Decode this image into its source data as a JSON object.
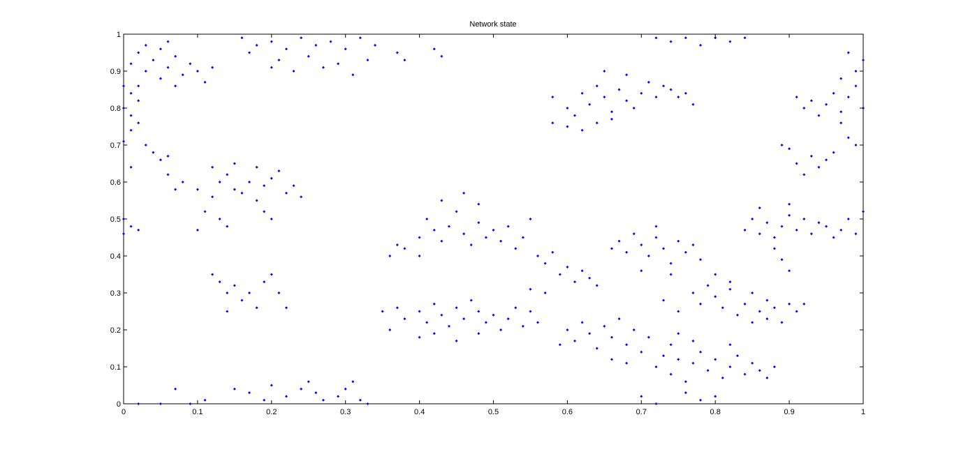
{
  "chart_data": {
    "type": "scatter",
    "title": "Network state",
    "xlabel": "",
    "ylabel": "",
    "xlim": [
      0,
      1
    ],
    "ylim": [
      0,
      1
    ],
    "grid": false,
    "legend": "none",
    "marker_color": "#0000ff",
    "xticks": [
      0,
      0.1,
      0.2,
      0.3,
      0.4,
      0.5,
      0.6,
      0.7,
      0.8,
      0.9,
      1
    ],
    "yticks": [
      0,
      0.1,
      0.2,
      0.3,
      0.4,
      0.5,
      0.6,
      0.7,
      0.8,
      0.9,
      1
    ],
    "xtick_labels": [
      "0",
      "0.1",
      "0.2",
      "0.3",
      "0.4",
      "0.5",
      "0.6",
      "0.7",
      "0.8",
      "0.9",
      "1"
    ],
    "ytick_labels": [
      "0",
      "0.1",
      "0.2",
      "0.3",
      "0.4",
      "0.5",
      "0.6",
      "0.7",
      "0.8",
      "0.9",
      "1"
    ],
    "points": [
      [
        0.01,
        0.92
      ],
      [
        0.02,
        0.95
      ],
      [
        0.03,
        0.9
      ],
      [
        0.04,
        0.93
      ],
      [
        0.05,
        0.88
      ],
      [
        0.06,
        0.91
      ],
      [
        0.07,
        0.94
      ],
      [
        0.08,
        0.89
      ],
      [
        0.09,
        0.92
      ],
      [
        0.1,
        0.9
      ],
      [
        0.11,
        0.87
      ],
      [
        0.03,
        0.97
      ],
      [
        0.05,
        0.96
      ],
      [
        0.07,
        0.86
      ],
      [
        0.02,
        0.86
      ],
      [
        0.12,
        0.91
      ],
      [
        0.06,
        0.98
      ],
      [
        0.01,
        0.84
      ],
      [
        0.0,
        0.8
      ],
      [
        0.01,
        0.78
      ],
      [
        0.02,
        0.82
      ],
      [
        0.0,
        0.86
      ],
      [
        0.01,
        0.74
      ],
      [
        0.02,
        0.76
      ],
      [
        0.03,
        0.7
      ],
      [
        0.04,
        0.68
      ],
      [
        0.05,
        0.66
      ],
      [
        0.06,
        0.67
      ],
      [
        0.0,
        0.71
      ],
      [
        0.01,
        0.64
      ],
      [
        0.0,
        0.5
      ],
      [
        0.01,
        0.48
      ],
      [
        0.02,
        0.47
      ],
      [
        0.0,
        0.46
      ],
      [
        0.16,
        0.99
      ],
      [
        0.18,
        0.97
      ],
      [
        0.2,
        0.98
      ],
      [
        0.22,
        0.96
      ],
      [
        0.24,
        0.99
      ],
      [
        0.26,
        0.97
      ],
      [
        0.28,
        0.98
      ],
      [
        0.3,
        0.96
      ],
      [
        0.32,
        0.99
      ],
      [
        0.34,
        0.97
      ],
      [
        0.21,
        0.93
      ],
      [
        0.25,
        0.94
      ],
      [
        0.29,
        0.92
      ],
      [
        0.23,
        0.9
      ],
      [
        0.27,
        0.91
      ],
      [
        0.31,
        0.89
      ],
      [
        0.37,
        0.95
      ],
      [
        0.38,
        0.93
      ],
      [
        0.2,
        0.91
      ],
      [
        0.33,
        0.93
      ],
      [
        0.42,
        0.96
      ],
      [
        0.43,
        0.94
      ],
      [
        0.17,
        0.95
      ],
      [
        0.08,
        0.6
      ],
      [
        0.1,
        0.58
      ],
      [
        0.12,
        0.56
      ],
      [
        0.13,
        0.6
      ],
      [
        0.14,
        0.62
      ],
      [
        0.15,
        0.58
      ],
      [
        0.16,
        0.57
      ],
      [
        0.17,
        0.6
      ],
      [
        0.18,
        0.55
      ],
      [
        0.19,
        0.59
      ],
      [
        0.2,
        0.61
      ],
      [
        0.21,
        0.63
      ],
      [
        0.22,
        0.57
      ],
      [
        0.23,
        0.59
      ],
      [
        0.24,
        0.56
      ],
      [
        0.11,
        0.52
      ],
      [
        0.13,
        0.5
      ],
      [
        0.14,
        0.48
      ],
      [
        0.12,
        0.64
      ],
      [
        0.15,
        0.65
      ],
      [
        0.1,
        0.47
      ],
      [
        0.19,
        0.52
      ],
      [
        0.2,
        0.5
      ],
      [
        0.06,
        0.62
      ],
      [
        0.07,
        0.58
      ],
      [
        0.18,
        0.64
      ],
      [
        0.12,
        0.35
      ],
      [
        0.13,
        0.33
      ],
      [
        0.14,
        0.3
      ],
      [
        0.15,
        0.32
      ],
      [
        0.16,
        0.28
      ],
      [
        0.17,
        0.3
      ],
      [
        0.18,
        0.26
      ],
      [
        0.19,
        0.33
      ],
      [
        0.2,
        0.35
      ],
      [
        0.21,
        0.3
      ],
      [
        0.22,
        0.26
      ],
      [
        0.14,
        0.25
      ],
      [
        0.15,
        0.04
      ],
      [
        0.17,
        0.03
      ],
      [
        0.19,
        0.01
      ],
      [
        0.2,
        0.05
      ],
      [
        0.22,
        0.02
      ],
      [
        0.24,
        0.04
      ],
      [
        0.25,
        0.06
      ],
      [
        0.26,
        0.03
      ],
      [
        0.27,
        0.01
      ],
      [
        0.29,
        0.02
      ],
      [
        0.3,
        0.04
      ],
      [
        0.31,
        0.06
      ],
      [
        0.32,
        0.01
      ],
      [
        0.33,
        0.0
      ],
      [
        0.02,
        0.0
      ],
      [
        0.05,
        0.0
      ],
      [
        0.07,
        0.04
      ],
      [
        0.09,
        0.0
      ],
      [
        0.11,
        0.01
      ],
      [
        0.38,
        0.42
      ],
      [
        0.4,
        0.45
      ],
      [
        0.41,
        0.5
      ],
      [
        0.42,
        0.47
      ],
      [
        0.43,
        0.44
      ],
      [
        0.44,
        0.48
      ],
      [
        0.45,
        0.52
      ],
      [
        0.46,
        0.46
      ],
      [
        0.47,
        0.43
      ],
      [
        0.48,
        0.49
      ],
      [
        0.49,
        0.45
      ],
      [
        0.5,
        0.47
      ],
      [
        0.51,
        0.44
      ],
      [
        0.52,
        0.48
      ],
      [
        0.53,
        0.42
      ],
      [
        0.54,
        0.45
      ],
      [
        0.55,
        0.5
      ],
      [
        0.56,
        0.4
      ],
      [
        0.57,
        0.38
      ],
      [
        0.58,
        0.41
      ],
      [
        0.59,
        0.35
      ],
      [
        0.6,
        0.37
      ],
      [
        0.61,
        0.33
      ],
      [
        0.62,
        0.36
      ],
      [
        0.63,
        0.34
      ],
      [
        0.64,
        0.32
      ],
      [
        0.43,
        0.55
      ],
      [
        0.46,
        0.57
      ],
      [
        0.48,
        0.54
      ],
      [
        0.4,
        0.4
      ],
      [
        0.36,
        0.4
      ],
      [
        0.37,
        0.43
      ],
      [
        0.55,
        0.31
      ],
      [
        0.57,
        0.3
      ],
      [
        0.37,
        0.26
      ],
      [
        0.38,
        0.23
      ],
      [
        0.4,
        0.25
      ],
      [
        0.41,
        0.22
      ],
      [
        0.42,
        0.27
      ],
      [
        0.43,
        0.24
      ],
      [
        0.44,
        0.21
      ],
      [
        0.45,
        0.26
      ],
      [
        0.46,
        0.23
      ],
      [
        0.47,
        0.28
      ],
      [
        0.48,
        0.25
      ],
      [
        0.49,
        0.22
      ],
      [
        0.5,
        0.24
      ],
      [
        0.51,
        0.2
      ],
      [
        0.52,
        0.23
      ],
      [
        0.53,
        0.26
      ],
      [
        0.54,
        0.21
      ],
      [
        0.55,
        0.25
      ],
      [
        0.56,
        0.22
      ],
      [
        0.4,
        0.18
      ],
      [
        0.42,
        0.19
      ],
      [
        0.45,
        0.17
      ],
      [
        0.48,
        0.19
      ],
      [
        0.35,
        0.25
      ],
      [
        0.36,
        0.2
      ],
      [
        0.58,
        0.83
      ],
      [
        0.6,
        0.8
      ],
      [
        0.61,
        0.78
      ],
      [
        0.62,
        0.84
      ],
      [
        0.63,
        0.81
      ],
      [
        0.64,
        0.86
      ],
      [
        0.65,
        0.83
      ],
      [
        0.66,
        0.79
      ],
      [
        0.67,
        0.85
      ],
      [
        0.68,
        0.82
      ],
      [
        0.69,
        0.8
      ],
      [
        0.7,
        0.84
      ],
      [
        0.71,
        0.87
      ],
      [
        0.72,
        0.83
      ],
      [
        0.73,
        0.86
      ],
      [
        0.74,
        0.85
      ],
      [
        0.75,
        0.83
      ],
      [
        0.6,
        0.75
      ],
      [
        0.62,
        0.74
      ],
      [
        0.64,
        0.76
      ],
      [
        0.66,
        0.77
      ],
      [
        0.68,
        0.89
      ],
      [
        0.65,
        0.9
      ],
      [
        0.76,
        0.84
      ],
      [
        0.77,
        0.81
      ],
      [
        0.58,
        0.76
      ],
      [
        0.72,
        0.99
      ],
      [
        0.74,
        0.98
      ],
      [
        0.76,
        0.99
      ],
      [
        0.78,
        0.97
      ],
      [
        0.8,
        0.99
      ],
      [
        0.82,
        0.98
      ],
      [
        0.84,
        0.99
      ],
      [
        0.92,
        0.8
      ],
      [
        0.93,
        0.82
      ],
      [
        0.94,
        0.78
      ],
      [
        0.95,
        0.81
      ],
      [
        0.96,
        0.84
      ],
      [
        0.97,
        0.79
      ],
      [
        0.98,
        0.83
      ],
      [
        0.99,
        0.86
      ],
      [
        1.0,
        0.8
      ],
      [
        0.97,
        0.76
      ],
      [
        0.98,
        0.72
      ],
      [
        0.99,
        0.7
      ],
      [
        0.96,
        0.68
      ],
      [
        0.95,
        0.66
      ],
      [
        0.94,
        0.64
      ],
      [
        0.93,
        0.67
      ],
      [
        0.9,
        0.69
      ],
      [
        0.91,
        0.65
      ],
      [
        0.92,
        0.62
      ],
      [
        0.99,
        0.9
      ],
      [
        1.0,
        0.93
      ],
      [
        0.98,
        0.95
      ],
      [
        0.97,
        0.88
      ],
      [
        0.91,
        0.83
      ],
      [
        0.89,
        0.7
      ],
      [
        0.67,
        0.44
      ],
      [
        0.68,
        0.41
      ],
      [
        0.69,
        0.46
      ],
      [
        0.7,
        0.43
      ],
      [
        0.71,
        0.4
      ],
      [
        0.72,
        0.45
      ],
      [
        0.73,
        0.42
      ],
      [
        0.74,
        0.38
      ],
      [
        0.75,
        0.44
      ],
      [
        0.76,
        0.41
      ],
      [
        0.77,
        0.43
      ],
      [
        0.78,
        0.39
      ],
      [
        0.66,
        0.42
      ],
      [
        0.7,
        0.36
      ],
      [
        0.74,
        0.35
      ],
      [
        0.72,
        0.48
      ],
      [
        0.84,
        0.47
      ],
      [
        0.85,
        0.5
      ],
      [
        0.86,
        0.46
      ],
      [
        0.87,
        0.49
      ],
      [
        0.88,
        0.45
      ],
      [
        0.89,
        0.48
      ],
      [
        0.9,
        0.51
      ],
      [
        0.91,
        0.47
      ],
      [
        0.92,
        0.5
      ],
      [
        0.93,
        0.46
      ],
      [
        0.94,
        0.49
      ],
      [
        0.95,
        0.48
      ],
      [
        0.96,
        0.45
      ],
      [
        0.97,
        0.47
      ],
      [
        0.98,
        0.5
      ],
      [
        0.99,
        0.46
      ],
      [
        1.0,
        0.52
      ],
      [
        0.88,
        0.42
      ],
      [
        0.89,
        0.39
      ],
      [
        0.9,
        0.36
      ],
      [
        0.86,
        0.53
      ],
      [
        0.9,
        0.54
      ],
      [
        0.77,
        0.3
      ],
      [
        0.78,
        0.27
      ],
      [
        0.79,
        0.32
      ],
      [
        0.8,
        0.29
      ],
      [
        0.81,
        0.26
      ],
      [
        0.82,
        0.31
      ],
      [
        0.83,
        0.24
      ],
      [
        0.84,
        0.27
      ],
      [
        0.85,
        0.22
      ],
      [
        0.86,
        0.25
      ],
      [
        0.87,
        0.23
      ],
      [
        0.88,
        0.26
      ],
      [
        0.89,
        0.22
      ],
      [
        0.9,
        0.27
      ],
      [
        0.91,
        0.25
      ],
      [
        0.92,
        0.27
      ],
      [
        0.8,
        0.35
      ],
      [
        0.82,
        0.33
      ],
      [
        0.85,
        0.3
      ],
      [
        0.87,
        0.28
      ],
      [
        0.73,
        0.28
      ],
      [
        0.75,
        0.25
      ],
      [
        0.6,
        0.2
      ],
      [
        0.61,
        0.17
      ],
      [
        0.62,
        0.22
      ],
      [
        0.63,
        0.19
      ],
      [
        0.64,
        0.15
      ],
      [
        0.65,
        0.21
      ],
      [
        0.66,
        0.18
      ],
      [
        0.67,
        0.23
      ],
      [
        0.68,
        0.16
      ],
      [
        0.69,
        0.2
      ],
      [
        0.7,
        0.14
      ],
      [
        0.71,
        0.18
      ],
      [
        0.66,
        0.12
      ],
      [
        0.68,
        0.11
      ],
      [
        0.59,
        0.16
      ],
      [
        0.72,
        0.1
      ],
      [
        0.73,
        0.13
      ],
      [
        0.74,
        0.08
      ],
      [
        0.75,
        0.12
      ],
      [
        0.76,
        0.06
      ],
      [
        0.77,
        0.11
      ],
      [
        0.78,
        0.14
      ],
      [
        0.79,
        0.09
      ],
      [
        0.8,
        0.12
      ],
      [
        0.81,
        0.07
      ],
      [
        0.82,
        0.1
      ],
      [
        0.83,
        0.13
      ],
      [
        0.84,
        0.08
      ],
      [
        0.85,
        0.11
      ],
      [
        0.86,
        0.09
      ],
      [
        0.87,
        0.07
      ],
      [
        0.88,
        0.1
      ],
      [
        0.76,
        0.03
      ],
      [
        0.78,
        0.01
      ],
      [
        0.8,
        0.02
      ],
      [
        0.7,
        0.02
      ],
      [
        0.72,
        0.0
      ],
      [
        0.74,
        0.16
      ],
      [
        0.77,
        0.17
      ],
      [
        0.82,
        0.16
      ],
      [
        0.75,
        0.19
      ]
    ]
  }
}
